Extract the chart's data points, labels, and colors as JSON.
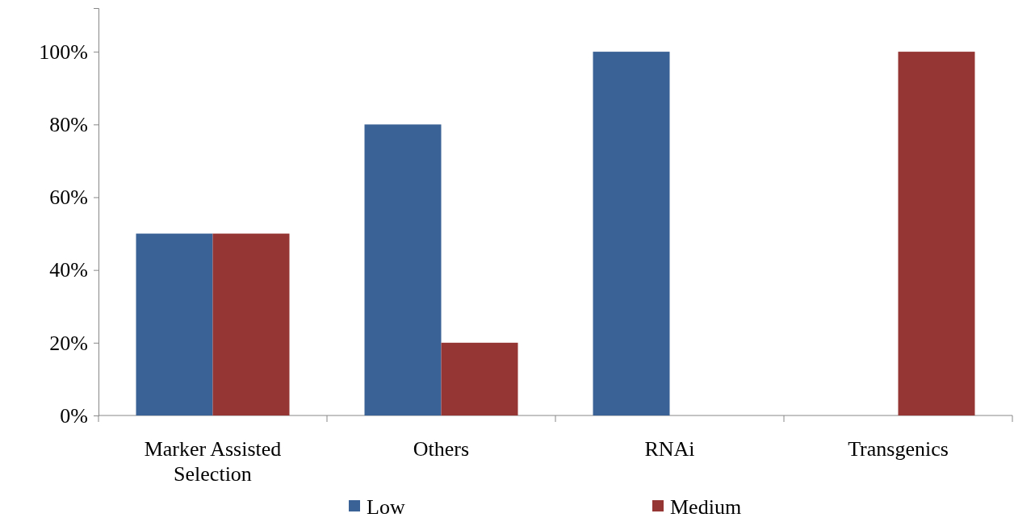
{
  "chart_data": {
    "type": "bar",
    "categories": [
      "Marker Assisted Selection",
      "Others",
      "RNAi",
      "Transgenics"
    ],
    "series": [
      {
        "name": "Low",
        "color": "#3b6296",
        "values": [
          50,
          80,
          100,
          0
        ]
      },
      {
        "name": "Medium",
        "color": "#963634",
        "values": [
          50,
          20,
          0,
          100
        ]
      }
    ],
    "ylim": [
      0,
      112
    ],
    "yticks": [
      {
        "value": 0,
        "label": "0%"
      },
      {
        "value": 20,
        "label": "20%"
      },
      {
        "value": 40,
        "label": "40%"
      },
      {
        "value": 60,
        "label": "60%"
      },
      {
        "value": 80,
        "label": "80%"
      },
      {
        "value": 100,
        "label": "100%"
      }
    ],
    "grid": false,
    "legend": "bottom"
  }
}
